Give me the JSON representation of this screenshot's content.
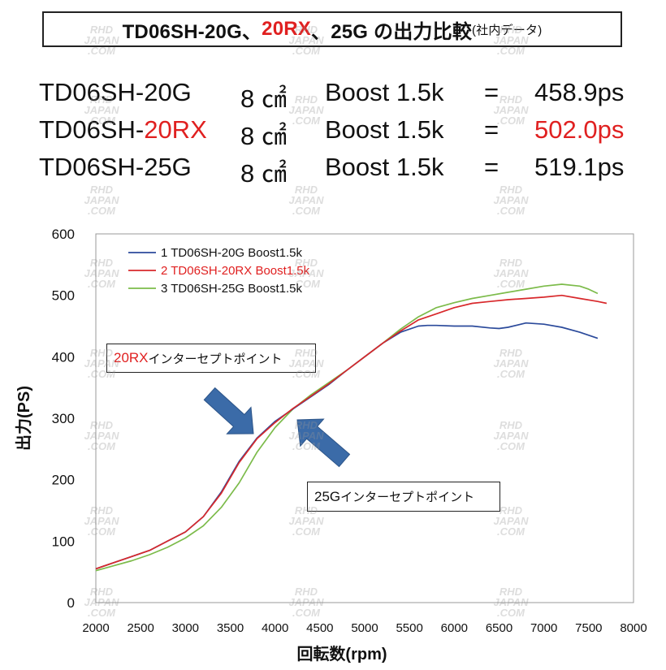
{
  "title": {
    "part1": "TD06SH-20G、",
    "part2": "20RX",
    "part3": "、25G の出力比較",
    "note": "(社内データ)"
  },
  "specs": [
    {
      "model_prefix": "TD06SH-",
      "model_suffix": "20G",
      "area": "8 ㎠",
      "boost": "Boost 1.5k",
      "eq": "=",
      "power": "458.9ps",
      "highlight": false
    },
    {
      "model_prefix": "TD06SH-",
      "model_suffix": "20RX",
      "area": "8 ㎠",
      "boost": "Boost 1.5k",
      "eq": "=",
      "power": "502.0ps",
      "highlight": true
    },
    {
      "model_prefix": "TD06SH-",
      "model_suffix": "25G",
      "area": "8 ㎠",
      "boost": "Boost 1.5k",
      "eq": "=",
      "power": "519.1ps",
      "highlight": false
    }
  ],
  "callouts": {
    "rx_prefix": "20RX",
    "rx_text": "インターセプトポイント",
    "g25_prefix": "25G",
    "g25_text": "インターセプトポイント"
  },
  "watermark": [
    "RHD",
    "JAPAN",
    ".COM"
  ],
  "colors": {
    "series1": "#2b4a9b",
    "series2": "#d8282b",
    "series3": "#7cbb4a",
    "arrow": "#3b6ba8",
    "accent_red": "#e02020"
  },
  "chart_data": {
    "type": "line",
    "xlabel": "回転数(rpm)",
    "ylabel": "出力(PS)",
    "xlim": [
      2000,
      8000
    ],
    "ylim": [
      0,
      600
    ],
    "xticks": [
      2000,
      2500,
      3000,
      3500,
      4000,
      4500,
      5000,
      5500,
      6000,
      6500,
      7000,
      7500,
      8000
    ],
    "yticks": [
      0,
      100,
      200,
      300,
      400,
      500,
      600
    ],
    "grid": false,
    "legend_position": "top-left",
    "series": [
      {
        "name": "1 TD06SH-20G Boost1.5k",
        "x": [
          2000,
          2200,
          2400,
          2600,
          2800,
          3000,
          3200,
          3400,
          3600,
          3800,
          4000,
          4200,
          4400,
          4600,
          4800,
          5000,
          5200,
          5400,
          5600,
          5700,
          5800,
          6000,
          6200,
          6400,
          6500,
          6600,
          6800,
          7000,
          7200,
          7400,
          7600
        ],
        "y": [
          55,
          65,
          75,
          85,
          100,
          115,
          140,
          180,
          230,
          268,
          295,
          315,
          335,
          355,
          378,
          400,
          422,
          440,
          450,
          451,
          451,
          450,
          450,
          447,
          446,
          448,
          455,
          453,
          448,
          440,
          430
        ]
      },
      {
        "name": "2 TD06SH-20RX Boost1.5k",
        "x": [
          2000,
          2200,
          2400,
          2600,
          2800,
          3000,
          3200,
          3400,
          3600,
          3800,
          4000,
          4200,
          4400,
          4600,
          4800,
          5000,
          5200,
          5400,
          5600,
          5800,
          6000,
          6200,
          6400,
          6600,
          6800,
          7000,
          7200,
          7400,
          7600,
          7700
        ],
        "y": [
          55,
          65,
          75,
          85,
          100,
          115,
          140,
          178,
          228,
          267,
          293,
          316,
          336,
          356,
          378,
          400,
          422,
          442,
          460,
          470,
          480,
          487,
          490,
          493,
          495,
          497,
          500,
          495,
          490,
          487
        ]
      },
      {
        "name": "3 TD06SH-25G Boost1.5k",
        "x": [
          2000,
          2200,
          2400,
          2600,
          2800,
          3000,
          3200,
          3400,
          3600,
          3800,
          4000,
          4200,
          4400,
          4600,
          4800,
          5000,
          5200,
          5400,
          5600,
          5800,
          6000,
          6200,
          6400,
          6600,
          6800,
          7000,
          7200,
          7400,
          7500,
          7600
        ],
        "y": [
          52,
          60,
          68,
          78,
          90,
          105,
          125,
          155,
          195,
          245,
          285,
          315,
          338,
          358,
          378,
          400,
          422,
          445,
          465,
          480,
          488,
          495,
          500,
          505,
          510,
          515,
          518,
          515,
          510,
          503
        ]
      }
    ]
  }
}
